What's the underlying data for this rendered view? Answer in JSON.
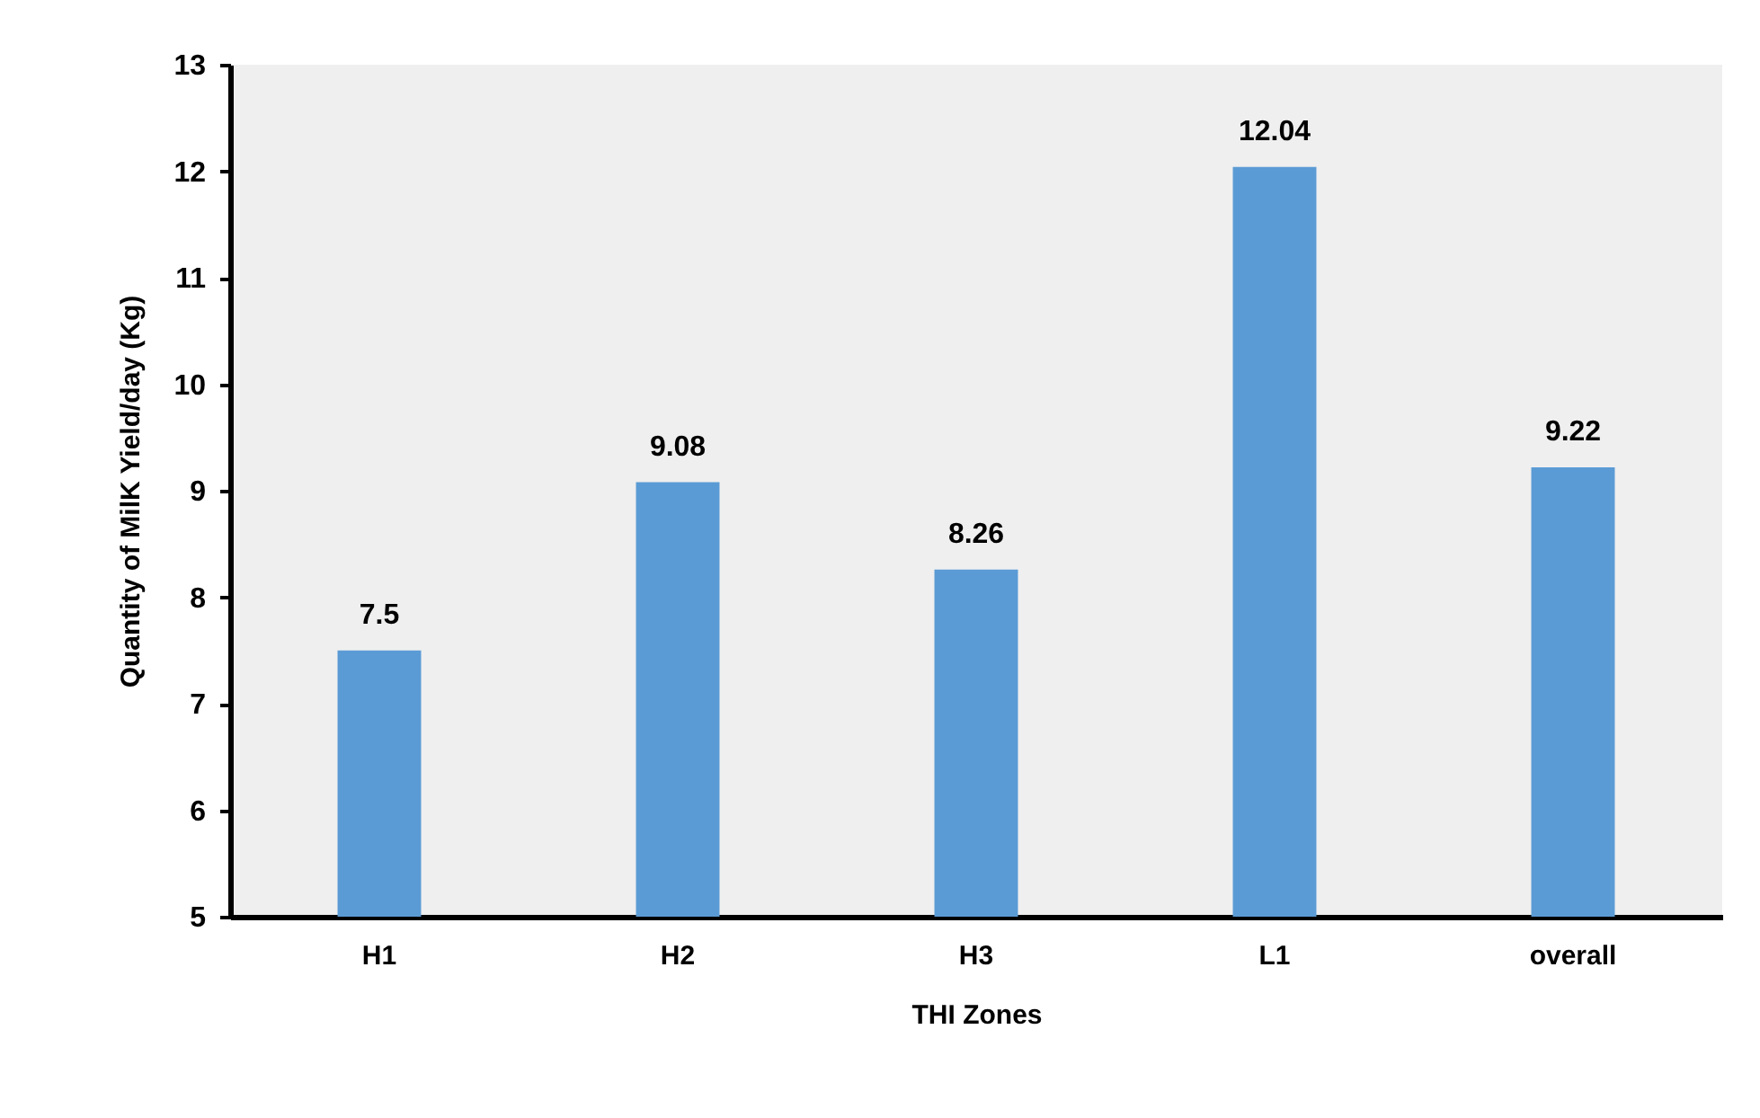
{
  "chart_data": {
    "type": "bar",
    "xlabel": "THI Zones",
    "ylabel": "Quantity of MilK Yield/day (Kg)",
    "categories": [
      "H1",
      "H2",
      "H3",
      "L1",
      "overall"
    ],
    "values": [
      7.5,
      9.08,
      8.26,
      12.04,
      9.22
    ],
    "color": "#5b9bd5",
    "ylim": [
      5,
      13
    ],
    "yticks": [
      5,
      6,
      7,
      8,
      9,
      10,
      11,
      12,
      13
    ],
    "grid": false,
    "data_labels": true
  }
}
